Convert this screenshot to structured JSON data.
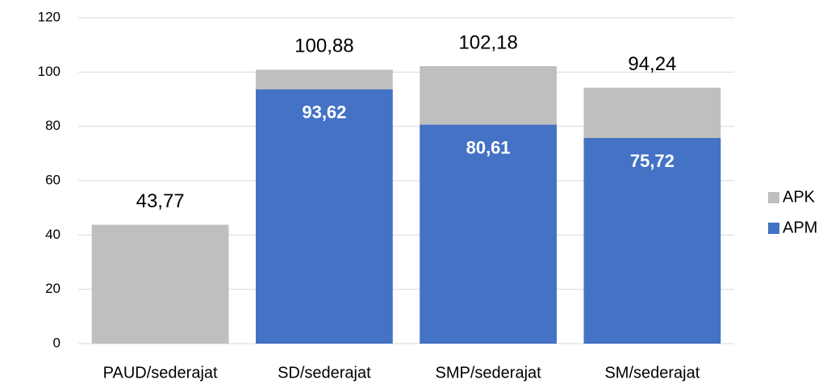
{
  "chart_data": {
    "type": "bar",
    "barmode": "overlay",
    "categories": [
      "PAUD/sederajat",
      "SD/sederajat",
      "SMP/sederajat",
      "SM/sederajat"
    ],
    "series": [
      {
        "name": "APK",
        "color": "#bfbfbf",
        "values": [
          43.77,
          100.88,
          102.18,
          94.24
        ],
        "value_labels": [
          "43,77",
          "100,88",
          "102,18",
          "94,24"
        ]
      },
      {
        "name": "APM",
        "color": "#4472c4",
        "values": [
          null,
          93.62,
          80.61,
          75.72
        ],
        "value_labels": [
          null,
          "93,62",
          "80,61",
          "75,72"
        ]
      }
    ],
    "ylim": [
      0,
      120
    ],
    "yticks": [
      0,
      20,
      40,
      60,
      80,
      100,
      120
    ],
    "grid": true,
    "legend": "right"
  }
}
